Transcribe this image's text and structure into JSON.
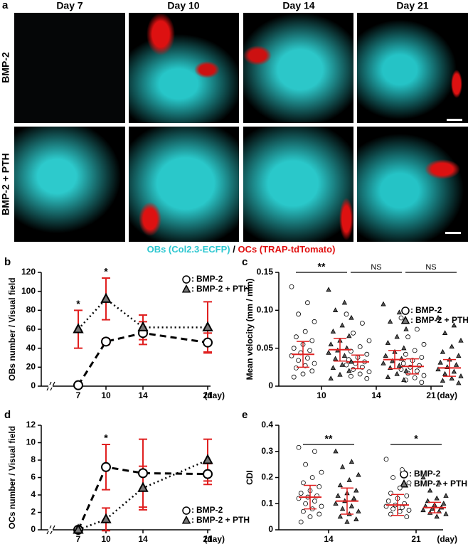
{
  "panel_a": {
    "panel": "a",
    "columns": [
      "Day 7",
      "Day 10",
      "Day 14",
      "Day 21"
    ],
    "rows": [
      "BMP-2",
      "BMP-2 + PTH"
    ],
    "caption": [
      "OBs (Col2.3-ECFP)",
      "/",
      "OCs (TRAP-tdTomato)"
    ]
  },
  "legend_separator": ":",
  "chart_data": [
    {
      "type": "line",
      "panel": "b",
      "ylabel": "OBs number / Visual field",
      "xlabel": "(day)",
      "x": [
        7,
        10,
        14,
        21
      ],
      "xlim": [
        3,
        23
      ],
      "xticks": [
        7,
        10,
        14,
        21
      ],
      "ylim": [
        0,
        120
      ],
      "yticks": [
        0,
        20,
        40,
        60,
        80,
        100,
        120
      ],
      "series": [
        {
          "name": "BMP-2",
          "marker": "circle",
          "dash": "dashed",
          "color": "#000000",
          "values": [
            1,
            47,
            56,
            46
          ],
          "errors": [
            0,
            3,
            12,
            10
          ]
        },
        {
          "name": "BMP-2 + PTH",
          "marker": "triangle",
          "dash": "dotted",
          "color": "#000000",
          "values": [
            60,
            92,
            62,
            62
          ],
          "errors": [
            20,
            22,
            13,
            27
          ]
        }
      ],
      "error_color": "#e02020",
      "annotations": [
        {
          "x": 7,
          "text": "*"
        },
        {
          "x": 10,
          "text": "*"
        }
      ]
    },
    {
      "type": "dot_plot",
      "panel": "c",
      "ylabel": "Mean velocity   (mm / min)",
      "xlabel": "(day)",
      "categories": [
        "10",
        "14",
        "21"
      ],
      "ylim": [
        0,
        0.15
      ],
      "yticks": [
        0,
        0.05,
        {
          "value": 0.1,
          "label": "0.10"
        },
        0.15
      ],
      "series": [
        {
          "name": "BMP-2",
          "marker": "circle",
          "values": [
            [
              0.131,
              0.11,
              0.095,
              0.085,
              0.072,
              0.065,
              0.06,
              0.055,
              0.05,
              0.047,
              0.044,
              0.04,
              0.037,
              0.034,
              0.03,
              0.027,
              0.024,
              0.02,
              0.016,
              0.012
            ],
            [
              0.095,
              0.083,
              0.07,
              0.06,
              0.052,
              0.046,
              0.042,
              0.038,
              0.035,
              0.032,
              0.03,
              0.028,
              0.025,
              0.022,
              0.019,
              0.016,
              0.013,
              0.01
            ],
            [
              0.09,
              0.075,
              0.065,
              0.055,
              0.047,
              0.042,
              0.038,
              0.034,
              0.03,
              0.027,
              0.025,
              0.022,
              0.02,
              0.017,
              0.014,
              0.011,
              0.008,
              0.005
            ]
          ],
          "means": [
            0.042,
            0.032,
            0.026
          ],
          "sds": [
            0.017,
            0.009,
            0.01
          ]
        },
        {
          "name": "BMP-2 + PTH",
          "marker": "triangle",
          "values": [
            [
              0.127,
              0.11,
              0.1,
              0.09,
              0.08,
              0.072,
              0.066,
              0.06,
              0.055,
              0.05,
              0.047,
              0.044,
              0.04,
              0.036,
              0.032,
              0.028,
              0.024,
              0.02,
              0.015,
              0.01
            ],
            [
              0.108,
              0.097,
              0.085,
              0.075,
              0.065,
              0.057,
              0.05,
              0.045,
              0.04,
              0.036,
              0.033,
              0.03,
              0.027,
              0.024,
              0.02,
              0.016,
              0.012,
              0.008
            ],
            [
              0.09,
              0.08,
              0.07,
              0.06,
              0.052,
              0.045,
              0.04,
              0.035,
              0.031,
              0.028,
              0.025,
              0.022,
              0.019,
              0.016,
              0.013,
              0.01,
              0.007,
              0.004
            ]
          ],
          "means": [
            0.048,
            0.035,
            0.024
          ],
          "sds": [
            0.015,
            0.012,
            0.011
          ]
        }
      ],
      "error_color": "#e02020",
      "annotations": [
        {
          "category": "10",
          "text": "**"
        },
        {
          "category": "14",
          "text": "NS"
        },
        {
          "category": "21",
          "text": "NS"
        }
      ]
    },
    {
      "type": "line",
      "panel": "d",
      "ylabel": "OCs number / Visual field",
      "xlabel": "(day)",
      "x": [
        7,
        10,
        14,
        21
      ],
      "xlim": [
        3,
        23
      ],
      "xticks": [
        7,
        10,
        14,
        21
      ],
      "ylim": [
        0,
        12
      ],
      "yticks": [
        0,
        2,
        4,
        6,
        8,
        10,
        12
      ],
      "series": [
        {
          "name": "BMP-2",
          "marker": "circle",
          "dash": "dashed",
          "color": "#000000",
          "values": [
            0,
            7.2,
            6.5,
            6.4
          ],
          "errors": [
            0,
            2.6,
            3.9,
            1.2
          ]
        },
        {
          "name": "BMP-2 + PTH",
          "marker": "triangle",
          "dash": "dotted",
          "color": "#000000",
          "values": [
            0,
            1.2,
            4.8,
            8
          ],
          "errors": [
            0,
            1.3,
            2.5,
            2.4
          ]
        }
      ],
      "error_color": "#e02020",
      "annotations": [
        {
          "x": 10,
          "text": "*"
        }
      ]
    },
    {
      "type": "dot_plot",
      "panel": "e",
      "ylabel": "CDI",
      "xlabel": "(day)",
      "categories": [
        "14",
        "21"
      ],
      "ylim": [
        0,
        0.4
      ],
      "yticks": [
        0,
        0.1,
        0.2,
        0.3,
        0.4
      ],
      "series": [
        {
          "name": "BMP-2",
          "marker": "circle",
          "values": [
            [
              0.315,
              0.3,
              0.25,
              0.22,
              0.2,
              0.18,
              0.165,
              0.15,
              0.14,
              0.13,
              0.125,
              0.12,
              0.11,
              0.1,
              0.09,
              0.08,
              0.07,
              0.06,
              0.05,
              0.03
            ],
            [
              0.27,
              0.23,
              0.2,
              0.18,
              0.16,
              0.14,
              0.13,
              0.12,
              0.11,
              0.1,
              0.095,
              0.09,
              0.085,
              0.08,
              0.075,
              0.07,
              0.06,
              0.05
            ]
          ],
          "means": [
            0.125,
            0.095
          ],
          "sds": [
            0.045,
            0.04
          ]
        },
        {
          "name": "BMP-2 + PTH",
          "marker": "triangle",
          "values": [
            [
              0.3,
              0.26,
              0.24,
              0.21,
              0.19,
              0.17,
              0.15,
              0.14,
              0.13,
              0.12,
              0.11,
              0.1,
              0.09,
              0.08,
              0.07,
              0.06,
              0.05,
              0.04,
              0.03
            ],
            [
              0.2,
              0.18,
              0.15,
              0.13,
              0.12,
              0.11,
              0.1,
              0.095,
              0.09,
              0.085,
              0.08,
              0.075,
              0.07,
              0.065,
              0.06,
              0.05
            ]
          ],
          "means": [
            0.11,
            0.085
          ],
          "sds": [
            0.05,
            0.02
          ]
        }
      ],
      "error_color": "#e02020",
      "annotations": [
        {
          "category": "14",
          "text": "**"
        },
        {
          "category": "21",
          "text": "*"
        }
      ]
    }
  ]
}
